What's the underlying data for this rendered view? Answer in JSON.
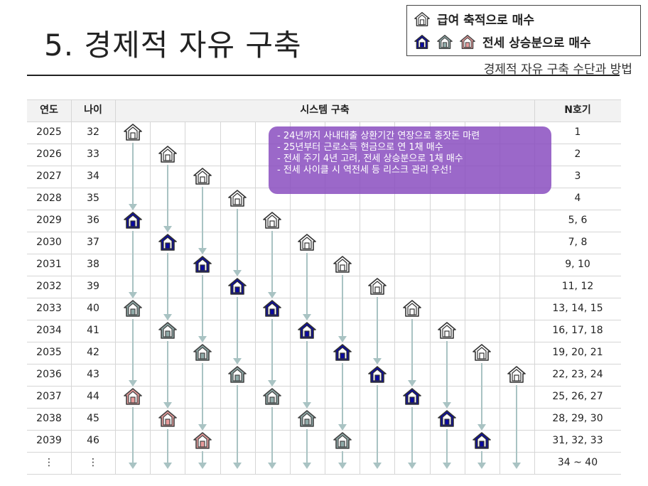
{
  "title": "5. 경제적 자유 구축",
  "subtitle": "경제적 자유 구축 수단과 방법",
  "legend": {
    "row1_label": "급여 축적으로 매수",
    "row2_label": "전세 상승분으로 매수",
    "row1_icons": [
      "house-outline-icon"
    ],
    "row2_icons": [
      "house-blue-icon",
      "house-gray-icon",
      "house-pink-icon"
    ]
  },
  "colors": {
    "house_outline": "#ffffff",
    "house_blue": "#0a0aa0",
    "house_gray": "#8faaa8",
    "house_pink": "#e79b9b",
    "arrow": "#a9c3c3",
    "callout": "#8a4dbf"
  },
  "table": {
    "headers": {
      "year": "연도",
      "age": "나이",
      "system": "시스템 구축",
      "nth": "N호기"
    },
    "rows": [
      {
        "year": "2025",
        "age": "32",
        "nth": "1"
      },
      {
        "year": "2026",
        "age": "33",
        "nth": "2"
      },
      {
        "year": "2027",
        "age": "34",
        "nth": "3"
      },
      {
        "year": "2028",
        "age": "35",
        "nth": "4"
      },
      {
        "year": "2029",
        "age": "36",
        "nth": "5, 6"
      },
      {
        "year": "2030",
        "age": "37",
        "nth": "7, 8"
      },
      {
        "year": "2031",
        "age": "38",
        "nth": "9, 10"
      },
      {
        "year": "2032",
        "age": "39",
        "nth": "11, 12"
      },
      {
        "year": "2033",
        "age": "40",
        "nth": "13, 14, 15"
      },
      {
        "year": "2034",
        "age": "41",
        "nth": "16, 17, 18"
      },
      {
        "year": "2035",
        "age": "42",
        "nth": "19, 20, 21"
      },
      {
        "year": "2036",
        "age": "43",
        "nth": "22, 23, 24"
      },
      {
        "year": "2037",
        "age": "44",
        "nth": "25, 26, 27"
      },
      {
        "year": "2038",
        "age": "45",
        "nth": "28, 29, 30"
      },
      {
        "year": "2039",
        "age": "46",
        "nth": "31, 32, 33"
      },
      {
        "year": "⋮",
        "age": "⋮",
        "nth": "34 ~ 40"
      }
    ]
  },
  "callout": {
    "lines": [
      "- 24년까지 사내대출 상환기간 연장으로 종잣돈 마련",
      "- 25년부터 근로소득 현금으로 연 1채 매수",
      "-  전세 주기 4년 고려, 전세 상승분으로 1채 매수",
      "-  전세 사이클 시 역전세 등 리스크 관리 우선!"
    ]
  }
}
